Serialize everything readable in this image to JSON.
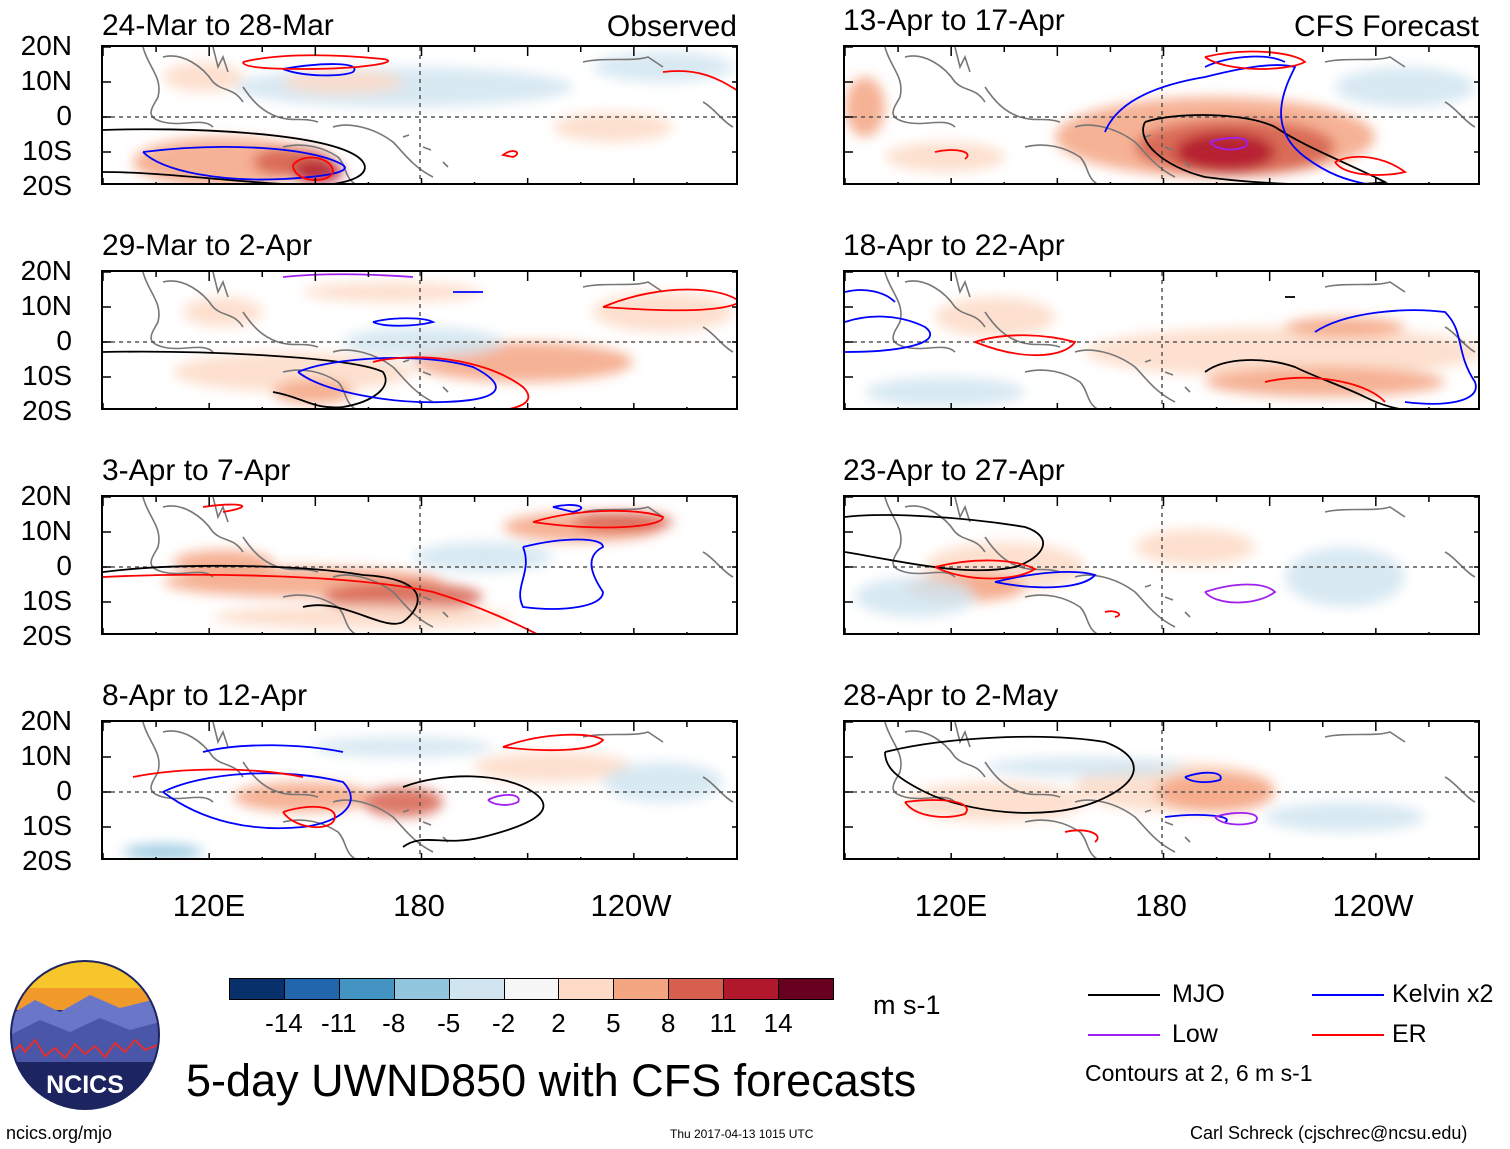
{
  "title": "5-day UWND850 with CFS forecasts",
  "footer": {
    "left": "ncics.org/mjo",
    "center": "Thu 2017-04-13 1015 UTC",
    "right": "Carl Schreck (cjschrec@ncsu.edu)"
  },
  "logo_text": "NCICS",
  "columns": {
    "left_tag": "Observed",
    "right_tag": "CFS Forecast"
  },
  "y_ticks": [
    "20N",
    "10N",
    "0",
    "10S",
    "20S"
  ],
  "x_ticks": [
    "120E",
    "180",
    "120W"
  ],
  "panels_left": [
    {
      "title": "24-Mar to 28-Mar"
    },
    {
      "title": "29-Mar to 2-Apr"
    },
    {
      "title": "3-Apr to 7-Apr"
    },
    {
      "title": "8-Apr to 12-Apr"
    }
  ],
  "panels_right": [
    {
      "title": "13-Apr to 17-Apr"
    },
    {
      "title": "18-Apr to 22-Apr"
    },
    {
      "title": "23-Apr to 27-Apr"
    },
    {
      "title": "28-Apr to 2-May"
    }
  ],
  "colorbar": {
    "unit": "m s-1",
    "labels": [
      "-14",
      "-11",
      "-8",
      "-5",
      "-2",
      "2",
      "5",
      "8",
      "11",
      "14"
    ],
    "colors": [
      "#08306b",
      "#2166ac",
      "#4393c3",
      "#92c5de",
      "#d1e5f0",
      "#f7f7f7",
      "#fddbc7",
      "#f4a582",
      "#d6604d",
      "#b2182b",
      "#67001f"
    ]
  },
  "legend": {
    "items": [
      {
        "label": "MJO",
        "color": "#000000"
      },
      {
        "label": "Kelvin x2",
        "color": "#0000ff"
      },
      {
        "label": "Low",
        "color": "#a020f0"
      },
      {
        "label": "ER",
        "color": "#ff0000"
      }
    ],
    "note": "Contours at 2, 6 m s-1"
  },
  "chart_data": [
    {
      "type": "heatmap",
      "title": "24-Mar to 28-Mar",
      "label": "Observed",
      "xlabel": "",
      "ylabel": "",
      "xlim": [
        "90E",
        "90W"
      ],
      "ylim": [
        "20S",
        "20N"
      ],
      "x_ticks": [
        "120E",
        "180",
        "120W"
      ],
      "y_ticks": [
        "20N",
        "10N",
        "0",
        "10S",
        "20S"
      ]
    },
    {
      "type": "heatmap",
      "title": "29-Mar to 2-Apr",
      "label": "Observed",
      "xlim": [
        "90E",
        "90W"
      ],
      "ylim": [
        "20S",
        "20N"
      ]
    },
    {
      "type": "heatmap",
      "title": "3-Apr to 7-Apr",
      "label": "Observed",
      "xlim": [
        "90E",
        "90W"
      ],
      "ylim": [
        "20S",
        "20N"
      ]
    },
    {
      "type": "heatmap",
      "title": "8-Apr to 12-Apr",
      "label": "Observed",
      "xlim": [
        "90E",
        "90W"
      ],
      "ylim": [
        "20S",
        "20N"
      ]
    },
    {
      "type": "heatmap",
      "title": "13-Apr to 17-Apr",
      "label": "CFS Forecast",
      "xlim": [
        "90E",
        "90W"
      ],
      "ylim": [
        "20S",
        "20N"
      ]
    },
    {
      "type": "heatmap",
      "title": "18-Apr to 22-Apr",
      "label": "CFS Forecast",
      "xlim": [
        "90E",
        "90W"
      ],
      "ylim": [
        "20S",
        "20N"
      ]
    },
    {
      "type": "heatmap",
      "title": "23-Apr to 27-Apr",
      "label": "CFS Forecast",
      "xlim": [
        "90E",
        "90W"
      ],
      "ylim": [
        "20S",
        "20N"
      ]
    },
    {
      "type": "heatmap",
      "title": "28-Apr to 2-May",
      "label": "CFS Forecast",
      "xlim": [
        "90E",
        "90W"
      ],
      "ylim": [
        "20S",
        "20N"
      ]
    }
  ]
}
